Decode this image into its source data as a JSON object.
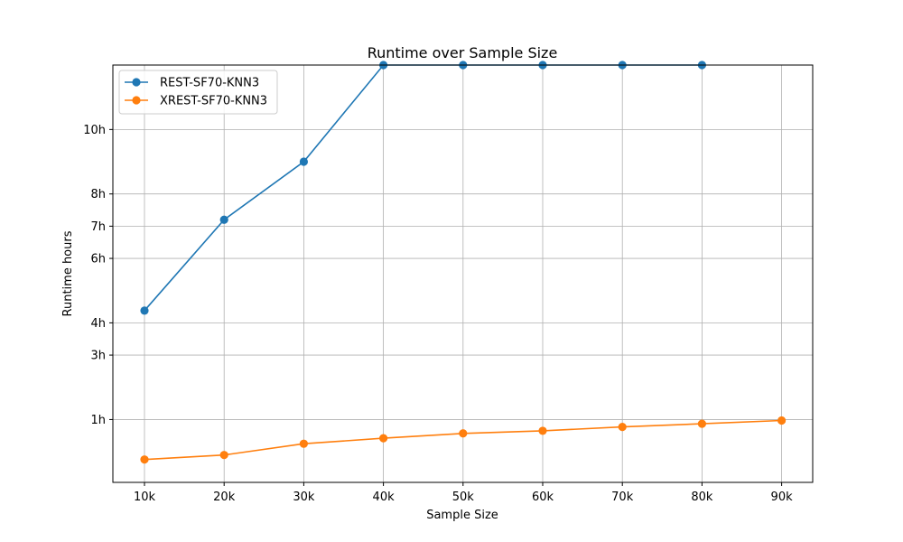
{
  "chart_data": {
    "type": "line",
    "title": "Runtime over Sample Size",
    "xlabel": "Sample Size",
    "ylabel": "Runtime hours",
    "categories": [
      "10k",
      "20k",
      "30k",
      "40k",
      "50k",
      "60k",
      "70k",
      "80k",
      "90k"
    ],
    "yticks": [
      {
        "label": "1h",
        "value": 1
      },
      {
        "label": "3h",
        "value": 3
      },
      {
        "label": "4h",
        "value": 4
      },
      {
        "label": "6h",
        "value": 6
      },
      {
        "label": "7h",
        "value": 7
      },
      {
        "label": "8h",
        "value": 8
      },
      {
        "label": "10h",
        "value": 10
      }
    ],
    "ylim": [
      -0.95,
      12
    ],
    "grid": true,
    "legend_position": "upper-left",
    "series": [
      {
        "name": "REST-SF70-KNN3",
        "color": "#1f77b4",
        "values": [
          4.38,
          7.2,
          9.0,
          12.0,
          12.0,
          12.0,
          12.0,
          12.0,
          null
        ]
      },
      {
        "name": "XREST-SF70-KNN3",
        "color": "#ff7f0e",
        "values": [
          -0.24,
          -0.1,
          0.25,
          0.42,
          0.57,
          0.65,
          0.77,
          0.87,
          0.97
        ]
      }
    ]
  }
}
